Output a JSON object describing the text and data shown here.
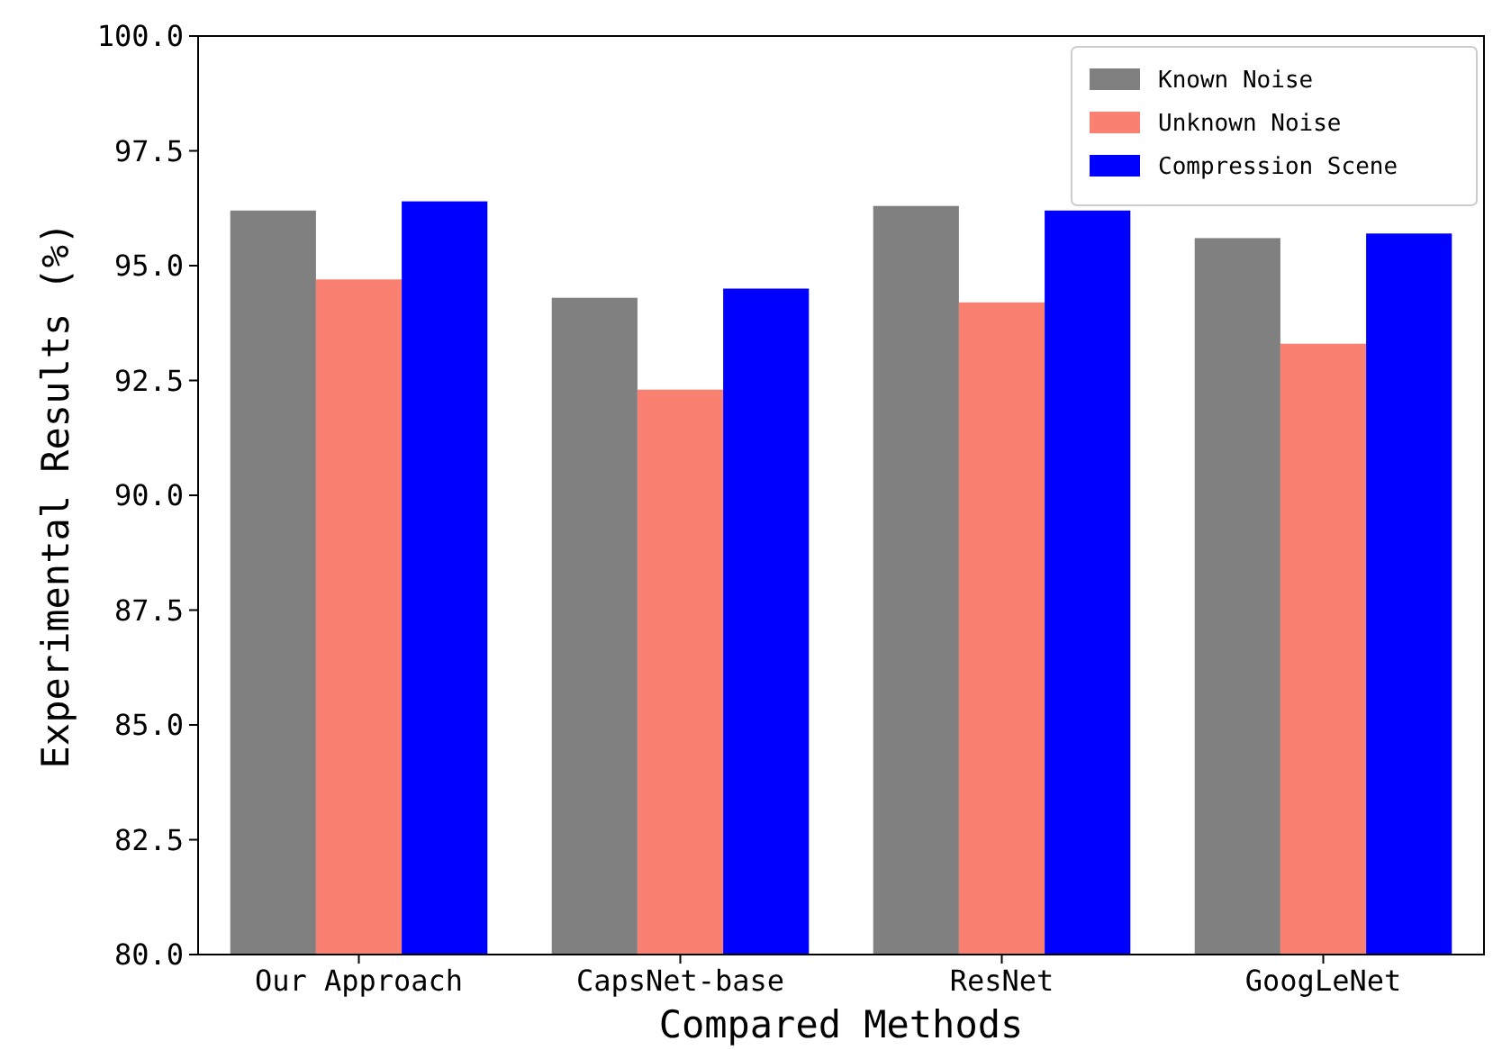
{
  "chart_data": {
    "type": "bar",
    "xlabel": "Compared Methods",
    "ylabel": "Experimental Results (%)",
    "categories": [
      "Our Approach",
      "CapsNet-base",
      "ResNet",
      "GoogLeNet"
    ],
    "series": [
      {
        "name": "Known Noise",
        "color": "#808080",
        "values": [
          96.2,
          94.3,
          96.3,
          95.6
        ]
      },
      {
        "name": "Unknown Noise",
        "color": "#fa8072",
        "values": [
          94.7,
          92.3,
          94.2,
          93.3
        ]
      },
      {
        "name": "Compression Scene",
        "color": "#0000ff",
        "values": [
          96.4,
          94.5,
          96.2,
          95.7
        ]
      }
    ],
    "ylim": [
      80,
      100
    ],
    "yticks": [
      {
        "value": 80,
        "label": "80.0"
      },
      {
        "value": 82.5,
        "label": "82.5"
      },
      {
        "value": 85,
        "label": "85.0"
      },
      {
        "value": 87.5,
        "label": "87.5"
      },
      {
        "value": 90,
        "label": "90.0"
      },
      {
        "value": 92.5,
        "label": "92.5"
      },
      {
        "value": 95,
        "label": "95.0"
      },
      {
        "value": 97.5,
        "label": "97.5"
      },
      {
        "value": 100,
        "label": "100.0"
      }
    ],
    "grid": false,
    "legend": "top right"
  }
}
